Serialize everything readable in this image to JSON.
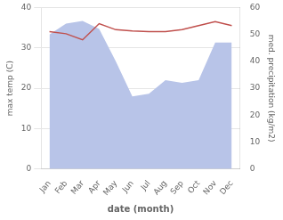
{
  "chart_data": {
    "type": "line",
    "categories": [
      "Jan",
      "Feb",
      "Mar",
      "Apr",
      "May",
      "Jun",
      "Jul",
      "Aug",
      "Sep",
      "Oct",
      "Nov",
      "Dec"
    ],
    "xlabel": "date (month)",
    "ylabel": "max temp (C)",
    "y2label": "med. precipitation (kg/m2)",
    "series": [
      {
        "type": "area",
        "color": "#b8c4e8",
        "axis": "y2",
        "values": [
          50,
          54,
          55,
          52,
          40,
          27,
          28,
          33,
          32,
          33,
          47,
          47
        ]
      },
      {
        "type": "line",
        "color": "#c0504d",
        "values": [
          34.0,
          33.5,
          32.0,
          36.0,
          34.5,
          34.2,
          34.0,
          34.0,
          34.5,
          35.5,
          36.5,
          35.5
        ]
      }
    ],
    "ylim": [
      0,
      40
    ],
    "yticks": [
      0,
      10,
      20,
      30,
      40
    ],
    "y2lim": [
      0,
      60
    ],
    "y2ticks": [
      0,
      10,
      20,
      30,
      40,
      50,
      60
    ],
    "grid": true
  }
}
